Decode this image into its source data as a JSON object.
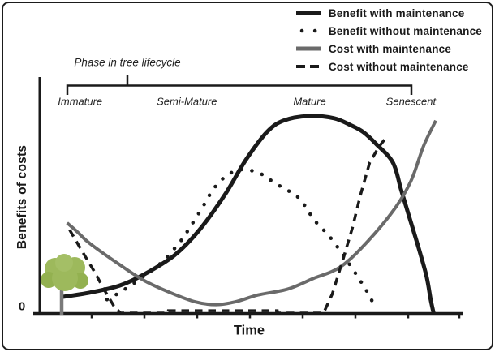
{
  "frame": {
    "background": "#ffffff",
    "border_color": "#1b1b1b"
  },
  "chart_data": {
    "type": "line",
    "title": "",
    "xlabel": "Time",
    "ylabel": "Benefits of costs",
    "origin_label": "0",
    "x_range": [
      0,
      100
    ],
    "y_range": [
      0,
      100
    ],
    "axes_note": "conceptual diagram; axes unitless, only origin labeled 0",
    "x_ticks_unlabeled": 9,
    "grid": false,
    "legend_position": "top-right",
    "phase_axis": {
      "label": "Phase in tree lifecycle",
      "phases": [
        {
          "name": "Immature",
          "x": 9.6
        },
        {
          "name": "Semi-Mature",
          "x": 35
        },
        {
          "name": "Mature",
          "x": 64.2
        },
        {
          "name": "Senescent",
          "x": 88.3
        }
      ]
    },
    "series": [
      {
        "id": "benefit_with",
        "name": "Benefit with maintenance",
        "kind": "solid-thick",
        "color": "#1a1a1a",
        "smooth": true,
        "points": [
          [
            5,
            7
          ],
          [
            12,
            9
          ],
          [
            19,
            12
          ],
          [
            25,
            17
          ],
          [
            32,
            25
          ],
          [
            38,
            36
          ],
          [
            44,
            51
          ],
          [
            49,
            66
          ],
          [
            54,
            78
          ],
          [
            58,
            83
          ],
          [
            64,
            85
          ],
          [
            70,
            84
          ],
          [
            74,
            81
          ],
          [
            77,
            78
          ],
          [
            80,
            73
          ],
          [
            84,
            65
          ],
          [
            86,
            53
          ],
          [
            88,
            41
          ],
          [
            90,
            29
          ],
          [
            92,
            16
          ],
          [
            93,
            6
          ],
          [
            93.7,
            0
          ]
        ]
      },
      {
        "id": "benefit_without",
        "name": "Benefit without maintenance",
        "kind": "dotted",
        "color": "#1a1a1a",
        "smooth": true,
        "points": [
          [
            16,
            6
          ],
          [
            19,
            9
          ],
          [
            24,
            15
          ],
          [
            29,
            22
          ],
          [
            33,
            30
          ],
          [
            35,
            35
          ],
          [
            38.5,
            45
          ],
          [
            41.5,
            54
          ],
          [
            45,
            60
          ],
          [
            48.5,
            62
          ],
          [
            52.7,
            60
          ],
          [
            56,
            56
          ],
          [
            59,
            53
          ],
          [
            62,
            49
          ],
          [
            65.4,
            40
          ],
          [
            69,
            33
          ],
          [
            73,
            23
          ],
          [
            76.3,
            14
          ],
          [
            78,
            9
          ],
          [
            80,
            2
          ]
        ]
      },
      {
        "id": "cost_with",
        "name": "Cost with maintenance",
        "kind": "solid",
        "color": "#6a6a6a",
        "smooth": true,
        "points": [
          [
            6.5,
            39
          ],
          [
            9,
            35
          ],
          [
            12,
            30
          ],
          [
            19,
            21
          ],
          [
            25,
            14
          ],
          [
            31,
            9
          ],
          [
            37,
            5
          ],
          [
            42,
            3.8
          ],
          [
            46.5,
            5
          ],
          [
            52,
            8
          ],
          [
            59,
            10.5
          ],
          [
            65,
            15
          ],
          [
            71.5,
            20
          ],
          [
            78,
            31
          ],
          [
            84.4,
            45
          ],
          [
            88.3,
            57
          ],
          [
            91.3,
            72
          ],
          [
            94.2,
            83
          ]
        ]
      },
      {
        "id": "cost_without",
        "name": "Cost without maintenance",
        "kind": "dashed",
        "color": "#1a1a1a",
        "smooth": false,
        "points": [
          [
            7.1,
            36
          ],
          [
            10,
            27
          ],
          [
            13,
            18
          ],
          [
            15.4,
            10
          ],
          [
            17.7,
            3
          ],
          [
            19.2,
            0.17
          ],
          [
            30.5,
            0.17
          ],
          [
            30.6,
            1.2
          ],
          [
            56.5,
            1.2
          ],
          [
            56.6,
            0.17
          ],
          [
            67.5,
            0.17
          ],
          [
            69.6,
            8.4
          ],
          [
            72.1,
            23
          ],
          [
            74.4,
            37
          ],
          [
            76.3,
            51
          ],
          [
            78.5,
            65
          ],
          [
            80.8,
            72
          ],
          [
            82.1,
            75
          ]
        ]
      }
    ]
  },
  "tree_icon": {
    "foliage_color": "#9db95c",
    "foliage_shade": "#93b150",
    "foliage_light": "#a4bf66",
    "trunk_color": "#7a7a7a"
  }
}
